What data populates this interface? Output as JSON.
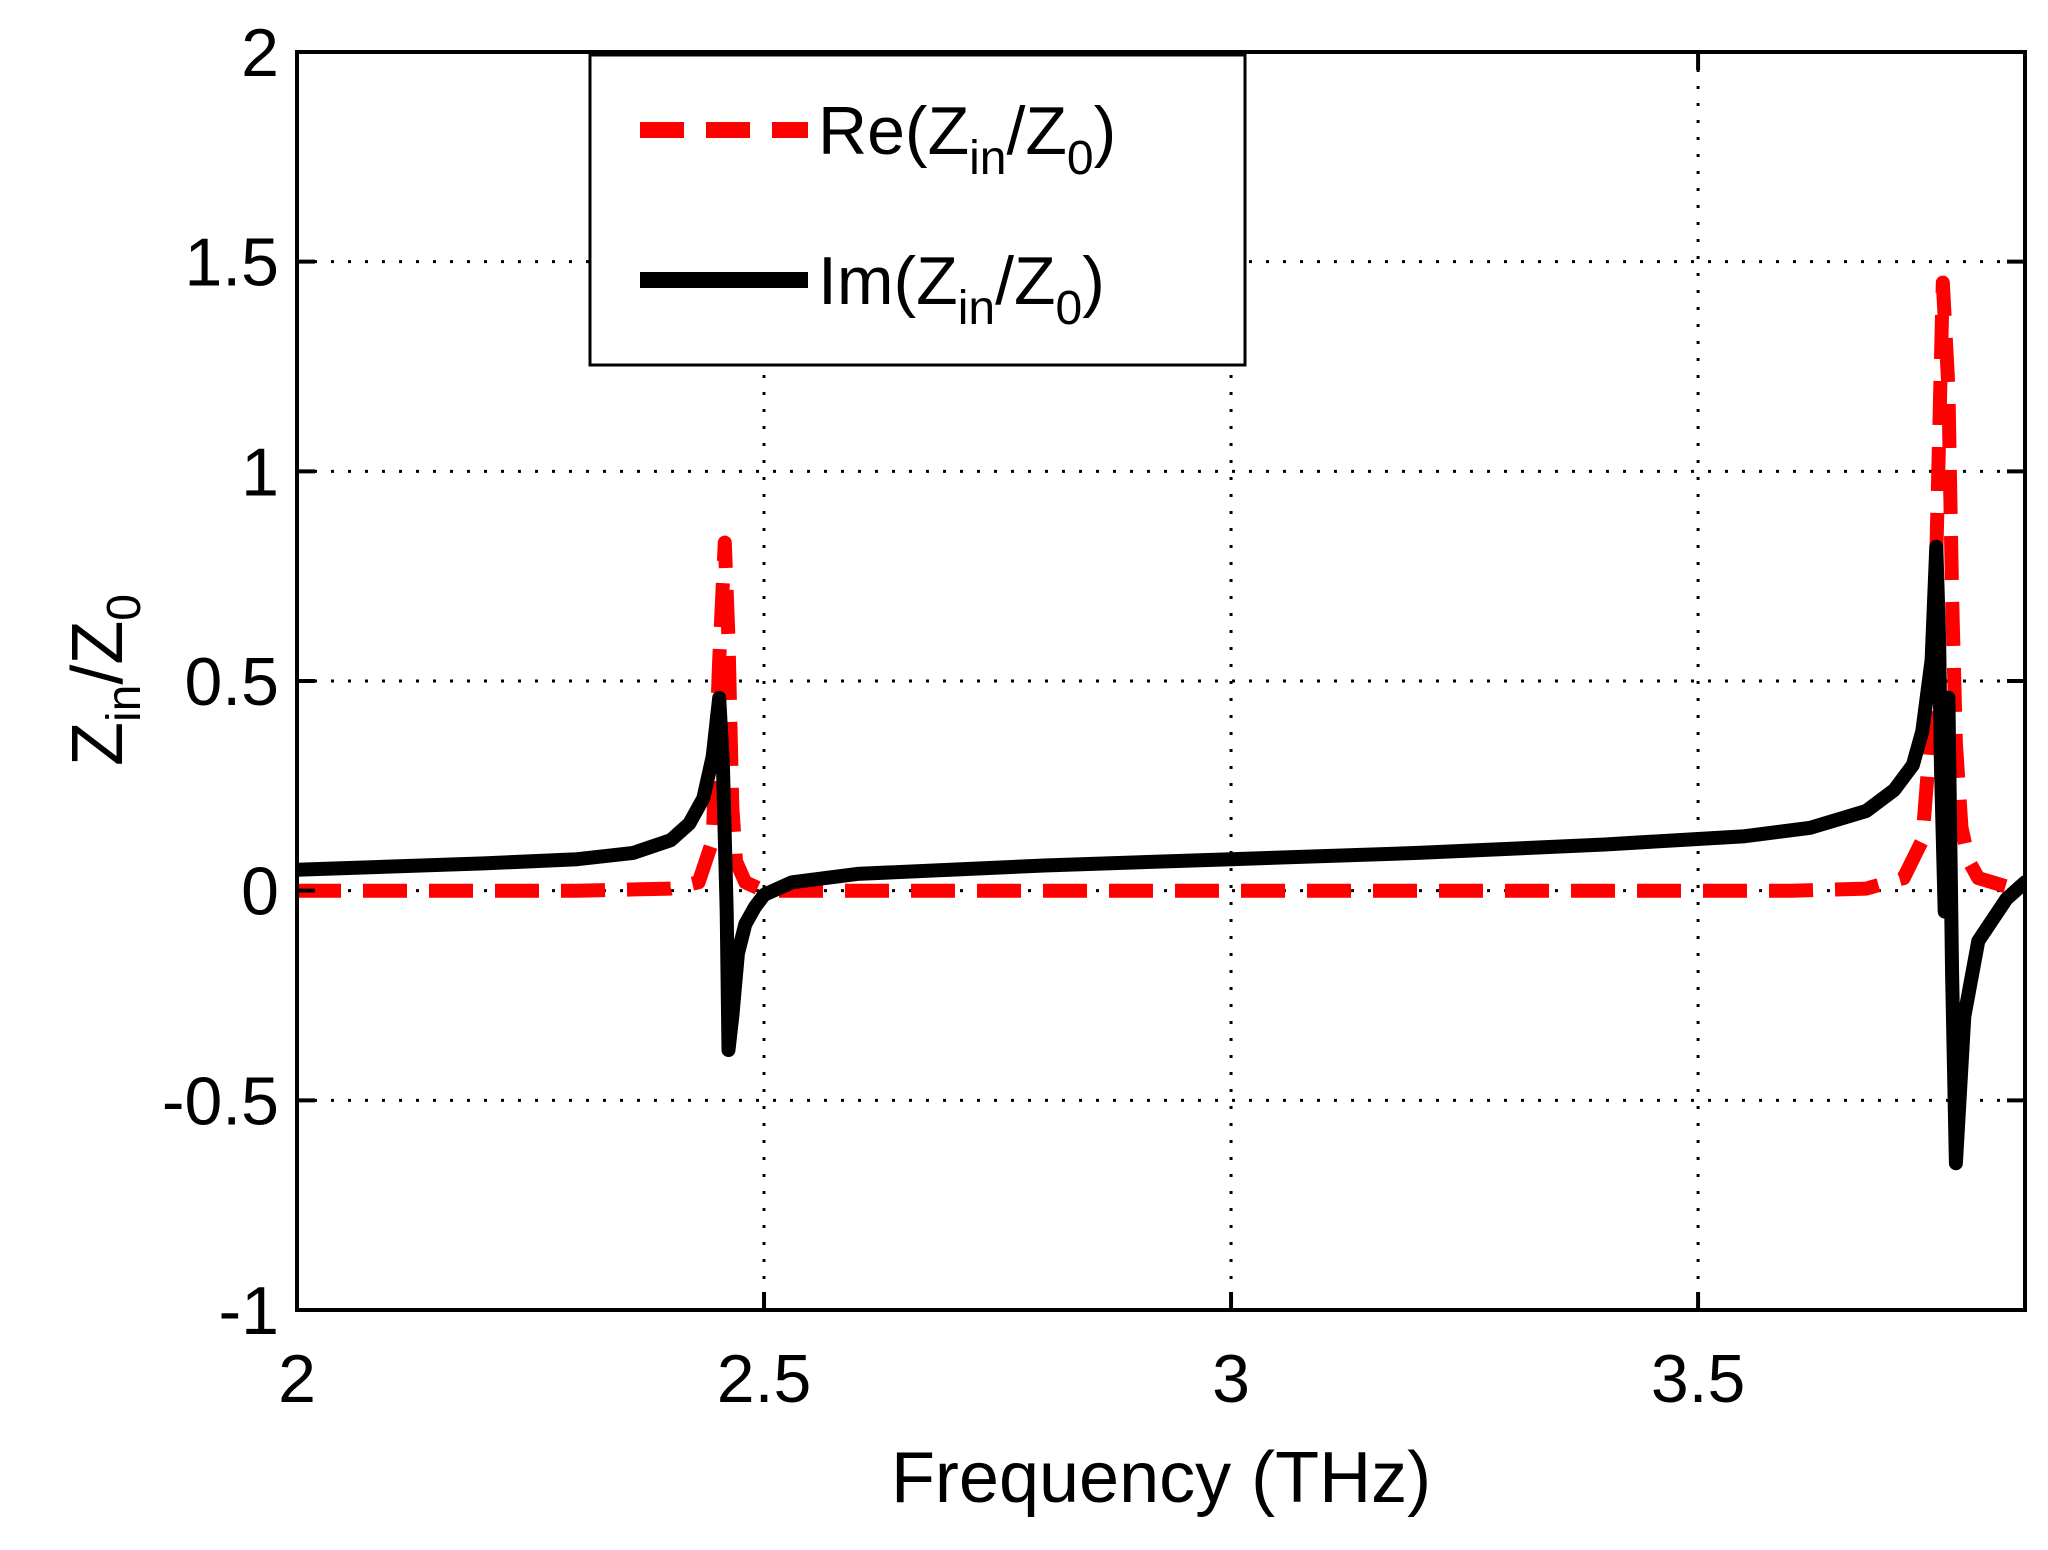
{
  "chart_data": {
    "type": "line",
    "title": "",
    "xlabel": "Frequency (THz)",
    "ylabel": {
      "main": "Z",
      "sub": "in",
      "sep": "/Z",
      "sub2": "0"
    },
    "xlim": [
      2,
      3.85
    ],
    "ylim": [
      -1,
      2
    ],
    "xticks": [
      2,
      2.5,
      3,
      3.5
    ],
    "xtick_labels": [
      "2",
      "2.5",
      "3",
      "3.5"
    ],
    "yticks": [
      -1,
      -0.5,
      0,
      0.5,
      1,
      1.5,
      2
    ],
    "ytick_labels": [
      "-1",
      "-0.5",
      "0",
      "0.5",
      "1",
      "1.5",
      "2"
    ],
    "grid": true,
    "legend_position": "top-center",
    "legend": [
      {
        "name": "Re",
        "prefix": "Re(Z",
        "sub1": "in",
        "mid": "/Z",
        "sub2": "0",
        "suffix": ")"
      },
      {
        "name": "Im",
        "prefix": "Im(Z",
        "sub1": "in",
        "mid": "/Z",
        "sub2": "0",
        "suffix": ")"
      }
    ],
    "series": [
      {
        "name": "Re(Zin/Z0)",
        "color": "#ff0000",
        "style": "dashed",
        "x": [
          2.0,
          2.3,
          2.4,
          2.43,
          2.445,
          2.452,
          2.458,
          2.462,
          2.466,
          2.47,
          2.48,
          2.5,
          2.7,
          3.0,
          3.3,
          3.6,
          3.68,
          3.72,
          3.74,
          3.75,
          3.755,
          3.762,
          3.768,
          3.772,
          3.776,
          3.782,
          3.79,
          3.8,
          3.83,
          3.85
        ],
        "y": [
          0.0,
          0.0,
          0.005,
          0.02,
          0.12,
          0.55,
          0.83,
          0.6,
          0.2,
          0.07,
          0.02,
          0.0,
          0.0,
          0.0,
          0.0,
          0.0,
          0.005,
          0.03,
          0.12,
          0.4,
          0.8,
          1.45,
          1.2,
          0.7,
          0.35,
          0.15,
          0.07,
          0.03,
          0.01,
          0.0
        ]
      },
      {
        "name": "Im(Zin/Z0)",
        "color": "#000000",
        "style": "solid",
        "x": [
          2.0,
          2.2,
          2.3,
          2.36,
          2.4,
          2.42,
          2.435,
          2.445,
          2.452,
          2.456,
          2.46,
          2.462,
          2.466,
          2.472,
          2.48,
          2.49,
          2.5,
          2.53,
          2.6,
          2.8,
          3.0,
          3.2,
          3.4,
          3.55,
          3.62,
          3.68,
          3.71,
          3.73,
          3.74,
          3.75,
          3.755,
          3.758,
          3.76,
          3.764,
          3.768,
          3.772,
          3.776,
          3.785,
          3.8,
          3.83,
          3.85
        ],
        "y": [
          0.05,
          0.065,
          0.075,
          0.09,
          0.12,
          0.16,
          0.22,
          0.32,
          0.46,
          0.3,
          -0.05,
          -0.38,
          -0.3,
          -0.15,
          -0.08,
          -0.04,
          -0.01,
          0.02,
          0.04,
          0.06,
          0.075,
          0.09,
          0.11,
          0.13,
          0.15,
          0.19,
          0.24,
          0.3,
          0.38,
          0.55,
          0.82,
          0.6,
          0.3,
          -0.05,
          0.46,
          -0.2,
          -0.65,
          -0.3,
          -0.12,
          -0.02,
          0.02
        ]
      }
    ]
  }
}
